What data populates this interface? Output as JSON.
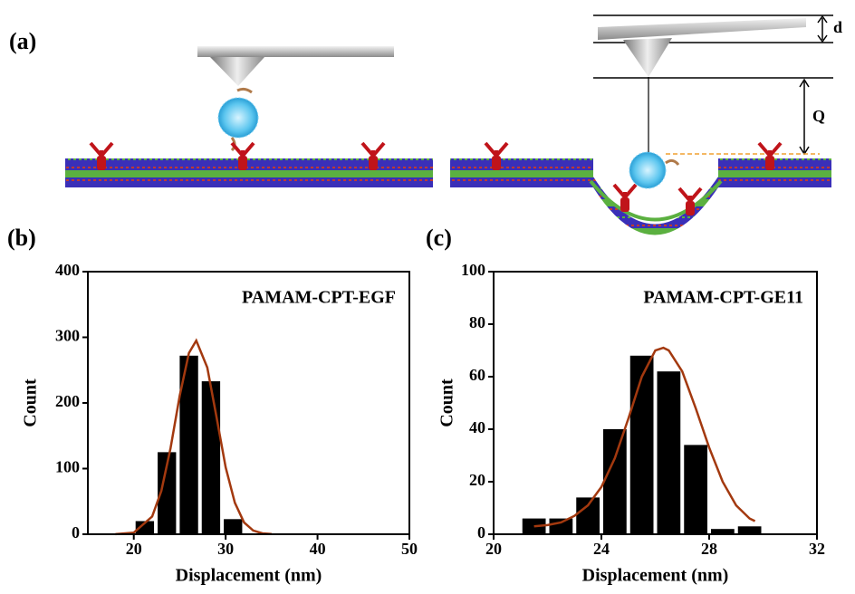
{
  "panel_a": {
    "label": "(a)",
    "annotations": [
      "d",
      "Q"
    ]
  },
  "chart_data": [
    {
      "type": "histogram",
      "panel_label": "(b)",
      "title": "PAMAM-CPT-EGF",
      "x_label": "Displacement (nm)",
      "y_label": "Count",
      "bins": [
        20,
        22.4,
        24.8,
        27.2,
        29.6,
        32
      ],
      "values": [
        20,
        125,
        272,
        233,
        23
      ],
      "color": "#000000",
      "fit": {
        "x": [
          18,
          20,
          22,
          23,
          24,
          25,
          26,
          26.8,
          28,
          29,
          30,
          31,
          32,
          33,
          34,
          35
        ],
        "values": [
          0.1,
          2.5,
          27,
          66,
          131,
          211,
          276,
          295,
          254,
          179,
          102,
          48,
          18,
          5.6,
          1.4,
          0.3
        ],
        "color": "#a3390f"
      },
      "xlim": [
        15,
        50
      ],
      "xticks": [
        20,
        30,
        40,
        50
      ],
      "ylim": [
        0,
        400
      ],
      "yticks": [
        0,
        100,
        200,
        300,
        400
      ],
      "grid": false
    },
    {
      "type": "histogram",
      "panel_label": "(c)",
      "title": "PAMAM-CPT-GE11",
      "x_label": "Displacement (nm)",
      "y_label": "Count",
      "bins": [
        21,
        22,
        23,
        24,
        25,
        26,
        27,
        28,
        29,
        30
      ],
      "values": [
        6,
        6,
        14,
        40,
        68,
        62,
        34,
        2,
        3
      ],
      "color": "#000000",
      "fit": {
        "x": [
          21.5,
          22,
          22.5,
          23,
          23.5,
          24,
          24.5,
          25,
          25.5,
          26,
          26.3,
          26.5,
          27,
          27.5,
          28,
          28.5,
          29,
          29.5,
          29.7
        ],
        "values": [
          3,
          3.5,
          4.5,
          7,
          11,
          18,
          29,
          44,
          60,
          70,
          71,
          70,
          62,
          48,
          33,
          20,
          11,
          6,
          5
        ],
        "color": "#a3390f"
      },
      "xlim": [
        20,
        32
      ],
      "xticks": [
        20,
        24,
        28,
        32
      ],
      "ylim": [
        0,
        100
      ],
      "yticks": [
        0,
        20,
        40,
        60,
        80,
        100
      ],
      "grid": false
    }
  ]
}
